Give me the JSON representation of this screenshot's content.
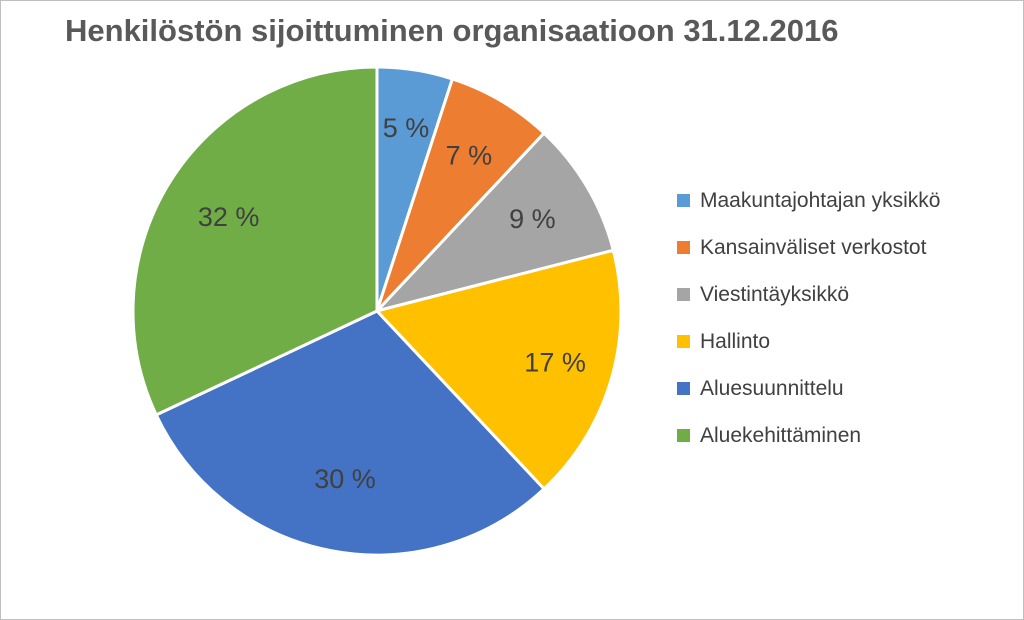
{
  "chart_data": {
    "type": "pie",
    "title": "Henkilöstön sijoittuminen organisaatioon 31.12.2016",
    "categories": [
      "Maakuntajohtajan yksikkö",
      "Kansainväliset verkostot",
      "Viestintäyksikkö",
      "Hallinto",
      "Aluesuunnittelu",
      "Aluekehittäminen"
    ],
    "values": [
      5,
      7,
      9,
      17,
      30,
      32
    ],
    "value_labels": [
      "5 %",
      "7 %",
      "9 %",
      "17 %",
      "30 %",
      "32 %"
    ],
    "colors": [
      "#5b9bd5",
      "#ed7d31",
      "#a5a5a5",
      "#ffc000",
      "#4472c4",
      "#70ad47"
    ],
    "legend_position": "right"
  }
}
